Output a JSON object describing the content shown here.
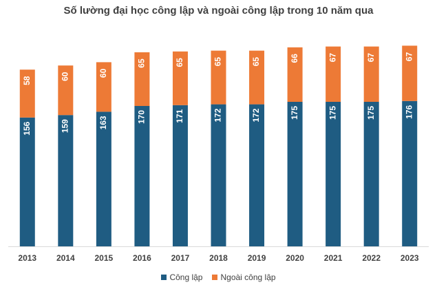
{
  "chart_data": {
    "type": "bar",
    "stacked": true,
    "title": "Số lường đại học công lập và ngoài công lập trong 10 năm qua",
    "categories": [
      "2013",
      "2014",
      "2015",
      "2016",
      "2017",
      "2018",
      "2019",
      "2020",
      "2021",
      "2022",
      "2023"
    ],
    "series": [
      {
        "name": "Công lập",
        "color": "#1f5c82",
        "values": [
          156,
          159,
          163,
          170,
          171,
          172,
          172,
          175,
          175,
          175,
          176
        ]
      },
      {
        "name": "Ngoài công lập",
        "color": "#ed7a36",
        "values": [
          58,
          60,
          60,
          65,
          65,
          65,
          65,
          66,
          67,
          67,
          67
        ]
      }
    ],
    "xlabel": "",
    "ylabel": "",
    "ylim": [
      0,
      250
    ],
    "grid": false,
    "legend_position": "bottom"
  }
}
